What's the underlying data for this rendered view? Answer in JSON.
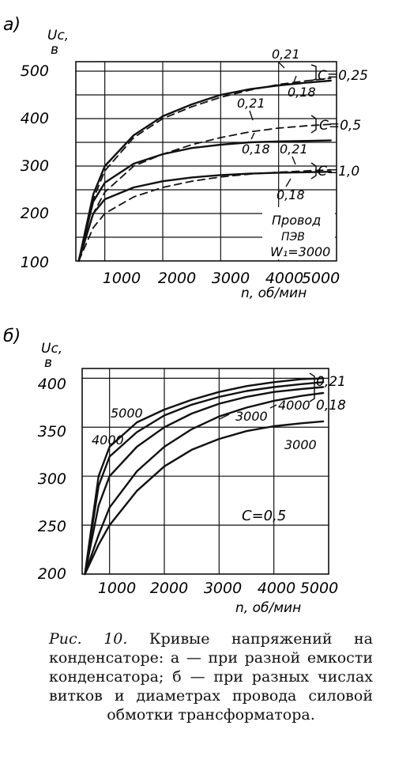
{
  "charts": [
    {
      "panel_label": "a)",
      "y_unit_line1": "Uc,",
      "y_unit_line2": "в",
      "x_unit": "n, об/мин",
      "y_ticks": [
        "100",
        "200",
        "300",
        "400",
        "500"
      ],
      "x_ticks": [
        "1000",
        "2000",
        "3000",
        "4000",
        "5000"
      ],
      "note_lines": [
        "Провод",
        "ПЭВ",
        "W₁=3000"
      ],
      "bracket_labels": [
        "C=0,25",
        "C=0,5",
        "C=1,0"
      ],
      "curve_labels": [
        "0,21",
        "0,18",
        "0,21",
        "0,18",
        "0,21",
        "0,18"
      ]
    },
    {
      "panel_label": "б)",
      "y_unit_line1": "Uc,",
      "y_unit_line2": "в",
      "x_unit": "n, об/мин",
      "y_ticks": [
        "200",
        "250",
        "300",
        "350",
        "400"
      ],
      "x_ticks": [
        "1000",
        "2000",
        "3000",
        "4000",
        "5000"
      ],
      "note_lines": [
        "C=0,5"
      ],
      "bracket_labels": [
        "0,21",
        "0,18"
      ],
      "curve_labels": [
        "5000",
        "4000",
        "3000",
        "4000",
        "3000"
      ]
    }
  ],
  "chart_data": [
    {
      "type": "line",
      "xlabel": "n, об/мин",
      "ylabel": "Uc, в",
      "xlim": [
        500,
        5000
      ],
      "ylim": [
        100,
        520
      ],
      "grid": true,
      "series": [
        {
          "name": "C=0,25; 0,21",
          "style": "dashed",
          "x": [
            550,
            800,
            1000,
            1500,
            2000,
            2500,
            3000,
            3500,
            4000,
            4500,
            4900
          ],
          "y": [
            100,
            230,
            290,
            360,
            400,
            425,
            445,
            460,
            472,
            480,
            485
          ]
        },
        {
          "name": "C=0,25; 0,18",
          "style": "solid",
          "x": [
            550,
            800,
            1000,
            1500,
            2000,
            2500,
            3000,
            3500,
            4000,
            4500,
            4900
          ],
          "y": [
            100,
            240,
            300,
            365,
            405,
            430,
            450,
            462,
            470,
            476,
            480
          ]
        },
        {
          "name": "C=0,5; 0,21",
          "style": "dashed",
          "x": [
            550,
            800,
            1000,
            1500,
            2000,
            2500,
            3000,
            3500,
            4000,
            4500,
            4900
          ],
          "y": [
            100,
            200,
            245,
            300,
            325,
            345,
            360,
            372,
            380,
            385,
            388
          ]
        },
        {
          "name": "C=0,5; 0,18",
          "style": "solid",
          "x": [
            550,
            800,
            1000,
            1500,
            2000,
            2500,
            3000,
            3500,
            4000,
            4500,
            4900
          ],
          "y": [
            100,
            225,
            265,
            305,
            325,
            338,
            345,
            350,
            352,
            353,
            354
          ]
        },
        {
          "name": "C=1,0; 0,21",
          "style": "dashed",
          "x": [
            550,
            800,
            1000,
            1500,
            2000,
            2500,
            3000,
            3500,
            4000,
            4500,
            4900
          ],
          "y": [
            100,
            170,
            200,
            235,
            255,
            268,
            277,
            283,
            287,
            290,
            292
          ]
        },
        {
          "name": "C=1,0; 0,18",
          "style": "solid",
          "x": [
            550,
            800,
            1000,
            1500,
            2000,
            2500,
            3000,
            3500,
            4000,
            4500,
            4900
          ],
          "y": [
            100,
            200,
            230,
            255,
            268,
            276,
            281,
            284,
            286,
            287,
            288
          ]
        }
      ]
    },
    {
      "type": "line",
      "xlabel": "n, об/мин",
      "ylabel": "Uc, в",
      "xlim": [
        500,
        5000
      ],
      "ylim": [
        200,
        410
      ],
      "grid": true,
      "series": [
        {
          "name": "5000; 0,21",
          "style": "solid",
          "x": [
            550,
            800,
            1000,
            1500,
            2000,
            2500,
            3000,
            3500,
            4000,
            4500,
            4900
          ],
          "y": [
            200,
            300,
            330,
            355,
            368,
            378,
            386,
            392,
            396,
            399,
            400
          ]
        },
        {
          "name": "4000; 0,18",
          "style": "solid",
          "x": [
            550,
            800,
            1000,
            1500,
            2000,
            2500,
            3000,
            3500,
            4000,
            4500,
            4900
          ],
          "y": [
            200,
            290,
            320,
            345,
            362,
            373,
            381,
            387,
            391,
            394,
            396
          ]
        },
        {
          "name": "4000; 0,21",
          "style": "solid",
          "x": [
            550,
            800,
            1000,
            1500,
            2000,
            2500,
            3000,
            3500,
            4000,
            4500,
            4900
          ],
          "y": [
            200,
            270,
            300,
            330,
            350,
            364,
            374,
            381,
            386,
            389,
            391
          ]
        },
        {
          "name": "3000; 0,21",
          "style": "solid",
          "x": [
            550,
            800,
            1000,
            1500,
            2000,
            2500,
            3000,
            3500,
            4000,
            4500,
            4900
          ],
          "y": [
            200,
            240,
            268,
            305,
            330,
            348,
            361,
            370,
            377,
            382,
            385
          ]
        },
        {
          "name": "3000; 0,18",
          "style": "solid",
          "x": [
            550,
            800,
            1000,
            1500,
            2000,
            2500,
            3000,
            3500,
            4000,
            4500,
            4900
          ],
          "y": [
            200,
            230,
            250,
            285,
            310,
            327,
            338,
            346,
            351,
            354,
            356
          ]
        }
      ]
    }
  ],
  "caption": {
    "label": "Рис. 10.",
    "text": "Кривые напряжений на конденсаторе: а — при разной емкости конденсатора; б — при разных числах витков и диаметрах провода силовой обмотки трансформатора."
  }
}
